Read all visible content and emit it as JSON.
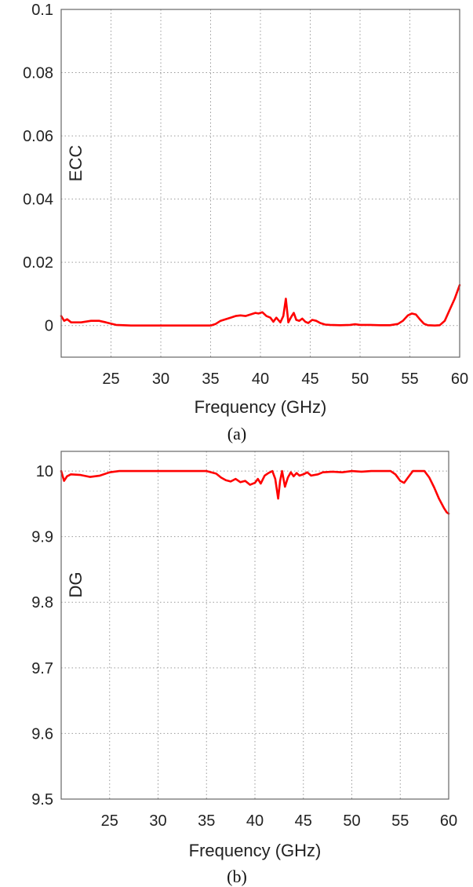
{
  "chart_data": [
    {
      "panel": "a",
      "type": "line",
      "caption": "(a)",
      "xlabel": "Frequency (GHz)",
      "ylabel": "ECC",
      "xlim": [
        20,
        60
      ],
      "ylim": [
        -0.01,
        0.1
      ],
      "xticks": [
        25,
        30,
        35,
        40,
        45,
        50,
        55,
        60
      ],
      "yticks": [
        0,
        0.02,
        0.04,
        0.06,
        0.08,
        0.1
      ],
      "ytick_labels": [
        "0",
        "0.02",
        "0.04",
        "0.06",
        "0.08",
        "0.1"
      ],
      "grid": true,
      "color": "#ff0000",
      "series": [
        {
          "x": [
            20,
            20.3,
            20.6,
            21,
            22,
            23,
            23.8,
            24.5,
            25.5,
            27,
            30,
            33,
            35,
            35.5,
            36,
            36.5,
            37,
            37.5,
            38,
            38.5,
            39,
            39.5,
            39.8,
            40.2,
            40.6,
            41,
            41.3,
            41.6,
            42,
            42.3,
            42.55,
            42.8,
            43.1,
            43.35,
            43.6,
            43.9,
            44.2,
            44.5,
            44.8,
            45.2,
            45.6,
            46,
            46.5,
            47,
            48,
            49,
            49.5,
            50,
            51,
            52,
            53,
            53.8,
            54.3,
            54.8,
            55.2,
            55.6,
            56,
            56.4,
            56.8,
            57.5,
            58,
            58.5,
            59,
            59.5,
            60
          ],
          "y": [
            0.003,
            0.0015,
            0.002,
            0.001,
            0.001,
            0.0015,
            0.0015,
            0.001,
            0.0002,
            0.0,
            0.0,
            0.0,
            0.0,
            0.0005,
            0.0015,
            0.002,
            0.0025,
            0.003,
            0.0032,
            0.003,
            0.0035,
            0.004,
            0.0038,
            0.0042,
            0.003,
            0.0025,
            0.0012,
            0.0025,
            0.001,
            0.003,
            0.0085,
            0.001,
            0.0028,
            0.004,
            0.0018,
            0.0015,
            0.0022,
            0.0012,
            0.0008,
            0.0018,
            0.0015,
            0.0008,
            0.0003,
            0.0002,
            0.0001,
            0.0002,
            0.0004,
            0.0002,
            0.0002,
            0.0001,
            0.0001,
            0.0005,
            0.0015,
            0.0032,
            0.0038,
            0.0035,
            0.002,
            0.0006,
            0.0001,
            0.0,
            0.0001,
            0.0015,
            0.005,
            0.0085,
            0.0128
          ]
        }
      ]
    },
    {
      "panel": "b",
      "type": "line",
      "caption": "(b)",
      "xlabel": "Frequency (GHz)",
      "ylabel": "DG",
      "xlim": [
        20,
        60
      ],
      "ylim": [
        9.5,
        10.03
      ],
      "xticks": [
        25,
        30,
        35,
        40,
        45,
        50,
        55,
        60
      ],
      "yticks": [
        9.5,
        9.6,
        9.7,
        9.8,
        9.9,
        10
      ],
      "ytick_labels": [
        "9.5",
        "9.6",
        "9.7",
        "9.8",
        "9.9",
        "10"
      ],
      "grid": true,
      "color": "#ff0000",
      "series": [
        {
          "x": [
            20,
            20.3,
            20.6,
            21,
            22,
            23,
            24,
            25,
            26,
            30,
            35,
            36,
            36.5,
            37,
            37.5,
            38,
            38.5,
            39,
            39.5,
            40,
            40.3,
            40.6,
            41,
            41.4,
            41.8,
            42.1,
            42.4,
            42.6,
            42.8,
            43.1,
            43.4,
            43.7,
            44,
            44.3,
            44.6,
            45,
            45.4,
            45.8,
            46.5,
            47,
            48,
            49,
            50,
            51,
            52,
            53,
            54,
            54.5,
            55,
            55.4,
            55.8,
            56.3,
            56.8,
            57.5,
            58,
            58.5,
            59,
            59.5,
            59.8,
            60
          ],
          "y": [
            10.0,
            9.985,
            9.992,
            9.995,
            9.994,
            9.991,
            9.993,
            9.998,
            10.0,
            10.0,
            10.0,
            9.996,
            9.99,
            9.986,
            9.984,
            9.988,
            9.983,
            9.985,
            9.979,
            9.982,
            9.988,
            9.981,
            9.993,
            9.997,
            10.0,
            9.988,
            9.958,
            9.985,
            10.0,
            9.976,
            9.99,
            9.998,
            9.992,
            9.997,
            9.993,
            9.995,
            9.998,
            9.993,
            9.995,
            9.998,
            9.999,
            9.998,
            10.0,
            9.999,
            10.0,
            10.0,
            10.0,
            9.995,
            9.985,
            9.982,
            9.99,
            10.0,
            10.0,
            10.0,
            9.99,
            9.975,
            9.958,
            9.944,
            9.937,
            9.935
          ]
        }
      ]
    }
  ]
}
